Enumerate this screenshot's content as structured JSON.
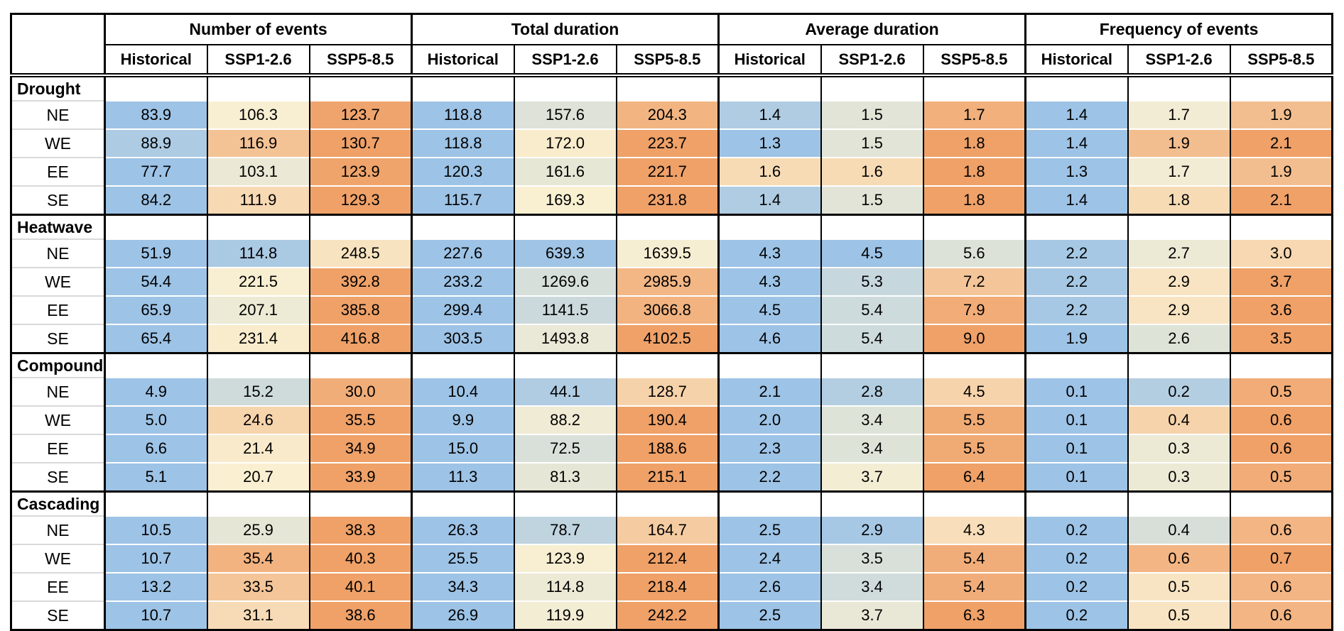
{
  "chart_data": {
    "type": "table",
    "title": "Hazard event metrics heatmap table",
    "corner_label": "",
    "metric_groups": [
      "Number of events",
      "Total duration",
      "Average duration",
      "Frequency of events"
    ],
    "scenarios": [
      "Historical",
      "SSP1-2.6",
      "SSP5-8.5"
    ],
    "color_scale": {
      "low": "#9DC3E6",
      "mid": "#FAF0D2",
      "high": "#EFA168",
      "note": "diverging blue-cream-orange, scaled per section per metric group"
    },
    "sections": [
      {
        "label": "Drought",
        "rows": [
          {
            "label": "NE",
            "values": [
              "83.9",
              "106.3",
              "123.7",
              "118.8",
              "157.6",
              "204.3",
              "1.4",
              "1.5",
              "1.7",
              "1.4",
              "1.7",
              "1.9"
            ]
          },
          {
            "label": "WE",
            "values": [
              "88.9",
              "116.9",
              "130.7",
              "118.8",
              "172.0",
              "223.7",
              "1.3",
              "1.5",
              "1.8",
              "1.4",
              "1.9",
              "2.1"
            ]
          },
          {
            "label": "EE",
            "values": [
              "77.7",
              "103.1",
              "123.9",
              "120.3",
              "161.6",
              "221.7",
              "1.6",
              "1.6",
              "1.8",
              "1.3",
              "1.7",
              "1.9"
            ]
          },
          {
            "label": "SE",
            "values": [
              "84.2",
              "111.9",
              "129.3",
              "115.7",
              "169.3",
              "231.8",
              "1.4",
              "1.5",
              "1.8",
              "1.4",
              "1.8",
              "2.1"
            ]
          }
        ]
      },
      {
        "label": "Heatwave",
        "rows": [
          {
            "label": "NE",
            "values": [
              "51.9",
              "114.8",
              "248.5",
              "227.6",
              "639.3",
              "1639.5",
              "4.3",
              "4.5",
              "5.6",
              "2.2",
              "2.7",
              "3.0"
            ]
          },
          {
            "label": "WE",
            "values": [
              "54.4",
              "221.5",
              "392.8",
              "233.2",
              "1269.6",
              "2985.9",
              "4.3",
              "5.3",
              "7.2",
              "2.2",
              "2.9",
              "3.7"
            ]
          },
          {
            "label": "EE",
            "values": [
              "65.9",
              "207.1",
              "385.8",
              "299.4",
              "1141.5",
              "3066.8",
              "4.5",
              "5.4",
              "7.9",
              "2.2",
              "2.9",
              "3.6"
            ]
          },
          {
            "label": "SE",
            "values": [
              "65.4",
              "231.4",
              "416.8",
              "303.5",
              "1493.8",
              "4102.5",
              "4.6",
              "5.4",
              "9.0",
              "1.9",
              "2.6",
              "3.5"
            ]
          }
        ]
      },
      {
        "label": "Compound",
        "rows": [
          {
            "label": "NE",
            "values": [
              "4.9",
              "15.2",
              "30.0",
              "10.4",
              "44.1",
              "128.7",
              "2.1",
              "2.8",
              "4.5",
              "0.1",
              "0.2",
              "0.5"
            ]
          },
          {
            "label": "WE",
            "values": [
              "5.0",
              "24.6",
              "35.5",
              "9.9",
              "88.2",
              "190.4",
              "2.0",
              "3.4",
              "5.5",
              "0.1",
              "0.4",
              "0.6"
            ]
          },
          {
            "label": "EE",
            "values": [
              "6.6",
              "21.4",
              "34.9",
              "15.0",
              "72.5",
              "188.6",
              "2.3",
              "3.4",
              "5.5",
              "0.1",
              "0.3",
              "0.6"
            ]
          },
          {
            "label": "SE",
            "values": [
              "5.1",
              "20.7",
              "33.9",
              "11.3",
              "81.3",
              "215.1",
              "2.2",
              "3.7",
              "6.4",
              "0.1",
              "0.3",
              "0.5"
            ]
          }
        ]
      },
      {
        "label": "Cascading",
        "rows": [
          {
            "label": "NE",
            "values": [
              "10.5",
              "25.9",
              "38.3",
              "26.3",
              "78.7",
              "164.7",
              "2.5",
              "2.9",
              "4.3",
              "0.2",
              "0.4",
              "0.6"
            ]
          },
          {
            "label": "WE",
            "values": [
              "10.7",
              "35.4",
              "40.3",
              "25.5",
              "123.9",
              "212.4",
              "2.4",
              "3.5",
              "5.4",
              "0.2",
              "0.6",
              "0.7"
            ]
          },
          {
            "label": "EE",
            "values": [
              "13.2",
              "33.5",
              "40.1",
              "34.3",
              "114.8",
              "218.4",
              "2.6",
              "3.4",
              "5.4",
              "0.2",
              "0.5",
              "0.6"
            ]
          },
          {
            "label": "SE",
            "values": [
              "10.7",
              "31.1",
              "38.6",
              "26.9",
              "119.9",
              "242.2",
              "2.5",
              "3.7",
              "6.3",
              "0.2",
              "0.5",
              "0.6"
            ]
          }
        ]
      }
    ]
  }
}
